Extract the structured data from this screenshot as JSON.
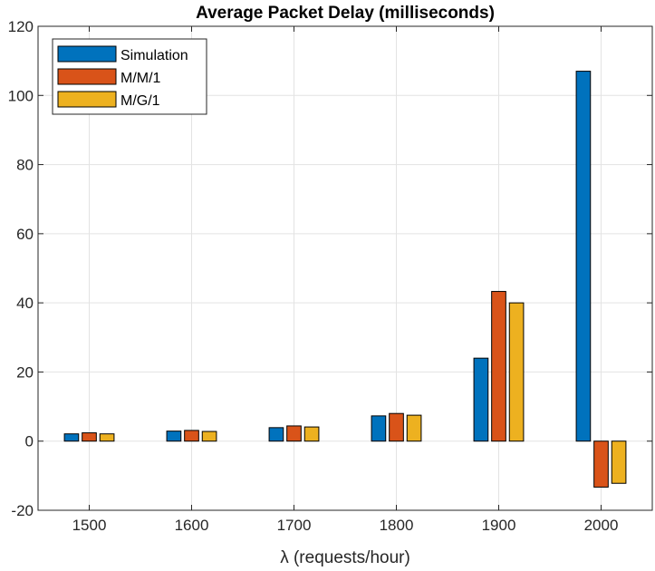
{
  "chart_data": {
    "type": "bar",
    "title": "Average Packet Delay (milliseconds)",
    "xlabel": "λ (requests/hour)",
    "ylabel": "",
    "categories": [
      "1500",
      "1600",
      "1700",
      "1800",
      "1900",
      "2000"
    ],
    "series": [
      {
        "name": "Simulation",
        "color": "#0072BD",
        "values": [
          2.1,
          2.9,
          3.9,
          7.3,
          24.0,
          107.0
        ]
      },
      {
        "name": "M/M/1",
        "color": "#D95319",
        "values": [
          2.4,
          3.1,
          4.4,
          8.0,
          43.3,
          -13.3
        ]
      },
      {
        "name": "M/G/1",
        "color": "#EDB120",
        "values": [
          2.1,
          2.8,
          4.1,
          7.5,
          40.0,
          -12.2
        ]
      }
    ],
    "ylim": [
      -20,
      120
    ],
    "yticks": [
      -20,
      0,
      20,
      40,
      60,
      80,
      100,
      120
    ],
    "grid": true,
    "legend_position": "top-left"
  }
}
